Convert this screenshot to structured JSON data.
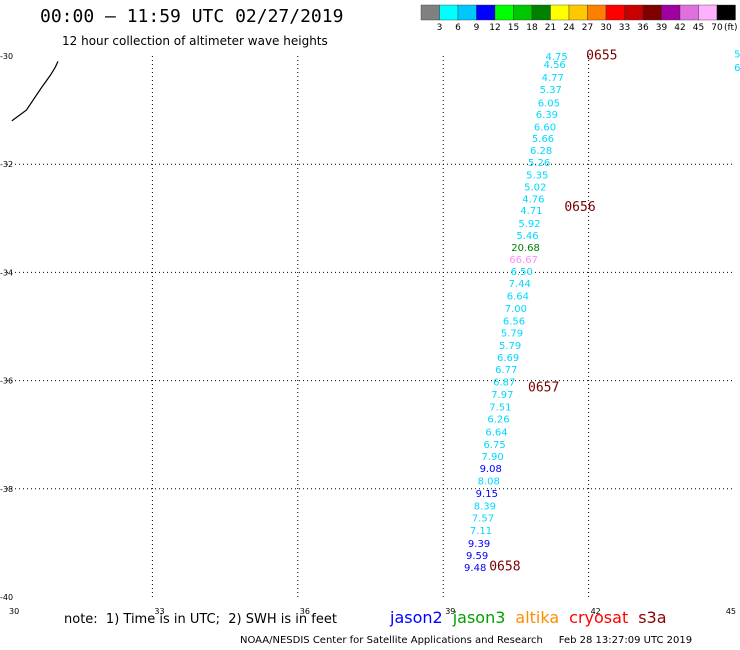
{
  "header": {
    "title": "00:00 – 11:59 UTC 02/27/2019",
    "subtitle": "12 hour collection of altimeter wave heights"
  },
  "legend": {
    "unit": "(ft)",
    "labels": [
      "3",
      "6",
      "9",
      "12",
      "15",
      "18",
      "21",
      "24",
      "27",
      "30",
      "33",
      "36",
      "39",
      "42",
      "45",
      "70"
    ],
    "colors": [
      "#808080",
      "#00ffff",
      "#00c8ff",
      "#0000ff",
      "#00ff00",
      "#00c800",
      "#008000",
      "#ffff00",
      "#ffc800",
      "#ff8000",
      "#ff0000",
      "#c80000",
      "#800000",
      "#a000a0",
      "#e070e0",
      "#ffb0ff",
      "#000000"
    ]
  },
  "chart_data": {
    "type": "scatter",
    "title": "00:00 – 11:59 UTC 02/27/2019",
    "subtitle": "12 hour collection of altimeter wave heights",
    "xlim": [
      30,
      45
    ],
    "ylim": [
      -40,
      -30
    ],
    "x_ticks": [
      30,
      33,
      36,
      39,
      42,
      45
    ],
    "y_ticks": [
      -30,
      -32,
      -34,
      -36,
      -38,
      -40
    ],
    "x_tick_labels": [
      "30",
      "33",
      "36",
      "39",
      "42",
      "45"
    ],
    "y_tick_labels": [
      "-30",
      "-32",
      "-34",
      "-36",
      "-38",
      "-40"
    ],
    "grid": true,
    "coastline": [
      [
        30.1,
        -31.2
      ],
      [
        30.4,
        -31.0
      ],
      [
        30.7,
        -30.6
      ],
      [
        30.9,
        -30.35
      ],
      [
        31.0,
        -30.2
      ],
      [
        31.05,
        -30.1
      ]
    ],
    "series": [
      {
        "name": "jason3",
        "points": [
          {
            "x": 41.34,
            "y": -30.0,
            "v": "4.75",
            "color": "#00d8ff"
          },
          {
            "x": 41.3,
            "y": -30.15,
            "v": "4.56",
            "color": "#00d8ff"
          },
          {
            "x": 41.26,
            "y": -30.39,
            "v": "4.77",
            "color": "#00d8ff"
          },
          {
            "x": 41.22,
            "y": -30.61,
            "v": "5.37",
            "color": "#00d8ff"
          },
          {
            "x": 41.18,
            "y": -30.86,
            "v": "6.05",
            "color": "#00d8ff"
          },
          {
            "x": 41.14,
            "y": -31.07,
            "v": "6.39",
            "color": "#00d8ff"
          },
          {
            "x": 41.1,
            "y": -31.3,
            "v": "6.60",
            "color": "#00d8ff"
          },
          {
            "x": 41.06,
            "y": -31.52,
            "v": "5.66",
            "color": "#00d8ff"
          },
          {
            "x": 41.02,
            "y": -31.74,
            "v": "6.28",
            "color": "#00d8ff"
          },
          {
            "x": 40.98,
            "y": -31.96,
            "v": "5.26",
            "color": "#00d8ff"
          },
          {
            "x": 40.94,
            "y": -32.19,
            "v": "5.35",
            "color": "#00d8ff"
          },
          {
            "x": 40.9,
            "y": -32.41,
            "v": "5.02",
            "color": "#00d8ff"
          },
          {
            "x": 40.86,
            "y": -32.63,
            "v": "4.76",
            "color": "#00d8ff"
          },
          {
            "x": 40.82,
            "y": -32.85,
            "v": "4.71",
            "color": "#00d8ff"
          },
          {
            "x": 40.78,
            "y": -33.09,
            "v": "5.92",
            "color": "#00d8ff"
          },
          {
            "x": 40.74,
            "y": -33.31,
            "v": "5.46",
            "color": "#00d8ff"
          },
          {
            "x": 40.7,
            "y": -33.53,
            "v": "20.68",
            "color": "#008000"
          },
          {
            "x": 40.66,
            "y": -33.75,
            "v": "66.67",
            "color": "#ff8cff"
          },
          {
            "x": 40.62,
            "y": -33.97,
            "v": "6.50",
            "color": "#00d8ff"
          },
          {
            "x": 40.58,
            "y": -34.2,
            "v": "7.44",
            "color": "#00d8ff"
          },
          {
            "x": 40.54,
            "y": -34.43,
            "v": "6.64",
            "color": "#00d8ff"
          },
          {
            "x": 40.5,
            "y": -34.66,
            "v": "7.00",
            "color": "#00d8ff"
          },
          {
            "x": 40.46,
            "y": -34.89,
            "v": "6.56",
            "color": "#00d8ff"
          },
          {
            "x": 40.42,
            "y": -35.11,
            "v": "5.79",
            "color": "#00d8ff"
          },
          {
            "x": 40.38,
            "y": -35.34,
            "v": "5.79",
            "color": "#00d8ff"
          },
          {
            "x": 40.34,
            "y": -35.56,
            "v": "6.69",
            "color": "#00d8ff"
          },
          {
            "x": 40.3,
            "y": -35.79,
            "v": "6.77",
            "color": "#00d8ff"
          },
          {
            "x": 40.26,
            "y": -36.02,
            "v": "6.87",
            "color": "#00d8ff"
          },
          {
            "x": 40.22,
            "y": -36.25,
            "v": "7.97",
            "color": "#00d8ff"
          },
          {
            "x": 40.18,
            "y": -36.48,
            "v": "7.51",
            "color": "#00d8ff"
          },
          {
            "x": 40.14,
            "y": -36.7,
            "v": "6.26",
            "color": "#00d8ff"
          },
          {
            "x": 40.1,
            "y": -36.94,
            "v": "6.64",
            "color": "#00d8ff"
          },
          {
            "x": 40.06,
            "y": -37.17,
            "v": "6.75",
            "color": "#00d8ff"
          },
          {
            "x": 40.02,
            "y": -37.39,
            "v": "7.90",
            "color": "#00d8ff"
          },
          {
            "x": 39.98,
            "y": -37.62,
            "v": "9.08",
            "color": "#0000ff"
          },
          {
            "x": 39.94,
            "y": -37.85,
            "v": "8.08",
            "color": "#00d8ff"
          },
          {
            "x": 39.9,
            "y": -38.08,
            "v": "9.15",
            "color": "#0000ff"
          },
          {
            "x": 39.86,
            "y": -38.31,
            "v": "8.39",
            "color": "#00d8ff"
          },
          {
            "x": 39.82,
            "y": -38.53,
            "v": "7.57",
            "color": "#00d8ff"
          },
          {
            "x": 39.78,
            "y": -38.76,
            "v": "7.11",
            "color": "#00d8ff"
          },
          {
            "x": 39.74,
            "y": -39.0,
            "v": "9.39",
            "color": "#0000ff"
          },
          {
            "x": 39.7,
            "y": -39.22,
            "v": "9.59",
            "color": "#0000ff"
          },
          {
            "x": 39.66,
            "y": -39.45,
            "v": "9.48",
            "color": "#0000ff"
          }
        ]
      }
    ],
    "edge_points": [
      {
        "x": 45.1,
        "y": -29.95,
        "v": "5.",
        "color": "#00d8ff"
      },
      {
        "x": 45.1,
        "y": -30.2,
        "v": "6.",
        "color": "#00d8ff"
      }
    ],
    "time_labels": [
      {
        "x": 41.95,
        "y": -29.97,
        "label": "0655"
      },
      {
        "x": 41.5,
        "y": -32.77,
        "label": "0656"
      },
      {
        "x": 40.75,
        "y": -36.11,
        "label": "0657"
      },
      {
        "x": 39.95,
        "y": -39.42,
        "label": "0658"
      }
    ]
  },
  "footer": {
    "note": "note:  1) Time is in UTC;  2) SWH is in feet",
    "satellites": [
      {
        "name": "jason2",
        "color": "#0000ff"
      },
      {
        "name": "jason3",
        "color": "#00a000"
      },
      {
        "name": "altika",
        "color": "#ff8c00"
      },
      {
        "name": "cryosat",
        "color": "#ff0000"
      },
      {
        "name": "s3a",
        "color": "#8b0000"
      }
    ],
    "credit": "NOAA/NESDIS Center for Satellite Applications and Research     Feb 28 13:27:09 UTC 2019"
  }
}
